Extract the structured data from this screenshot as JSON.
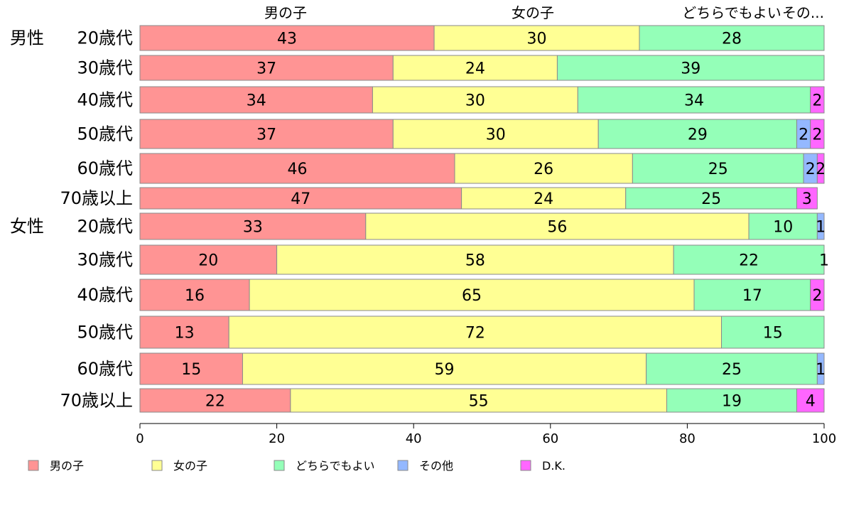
{
  "chart_data": {
    "type": "bar",
    "orientation": "horizontal",
    "stacked": true,
    "percent": true,
    "xlim": [
      0,
      100
    ],
    "xticks": [
      0,
      20,
      40,
      60,
      80,
      100
    ],
    "grid": false,
    "legend_position": "bottom",
    "column_headers": [
      "男の子",
      "女の子",
      "どちらでもよい",
      "その..."
    ],
    "groups": [
      {
        "label": "男性",
        "rows": [
          "20歳代",
          "30歳代",
          "40歳代",
          "50歳代",
          "60歳代",
          "70歳以上"
        ]
      },
      {
        "label": "女性",
        "rows": [
          "20歳代",
          "30歳代",
          "40歳代",
          "50歳代",
          "60歳代",
          "70歳以上"
        ]
      }
    ],
    "series": [
      {
        "name": "男の子",
        "color": "#ff9494",
        "values": [
          43,
          37,
          34,
          37,
          46,
          47,
          33,
          20,
          16,
          13,
          15,
          22
        ]
      },
      {
        "name": "女の子",
        "color": "#ffff94",
        "values": [
          30,
          24,
          30,
          30,
          26,
          24,
          56,
          58,
          65,
          72,
          59,
          55
        ]
      },
      {
        "name": "どちらでもよい",
        "color": "#94ffb8",
        "values": [
          28,
          39,
          34,
          29,
          25,
          25,
          10,
          22,
          17,
          15,
          25,
          19
        ]
      },
      {
        "name": "その他",
        "color": "#94b8ff",
        "values": [
          0,
          0,
          0,
          2,
          2,
          0,
          1,
          0,
          0,
          0,
          1,
          0
        ]
      },
      {
        "name": "D.K.",
        "color": "#ff66ff",
        "values": [
          0,
          0,
          2,
          2,
          2,
          3,
          0,
          1,
          2,
          0,
          0,
          4
        ]
      }
    ]
  }
}
